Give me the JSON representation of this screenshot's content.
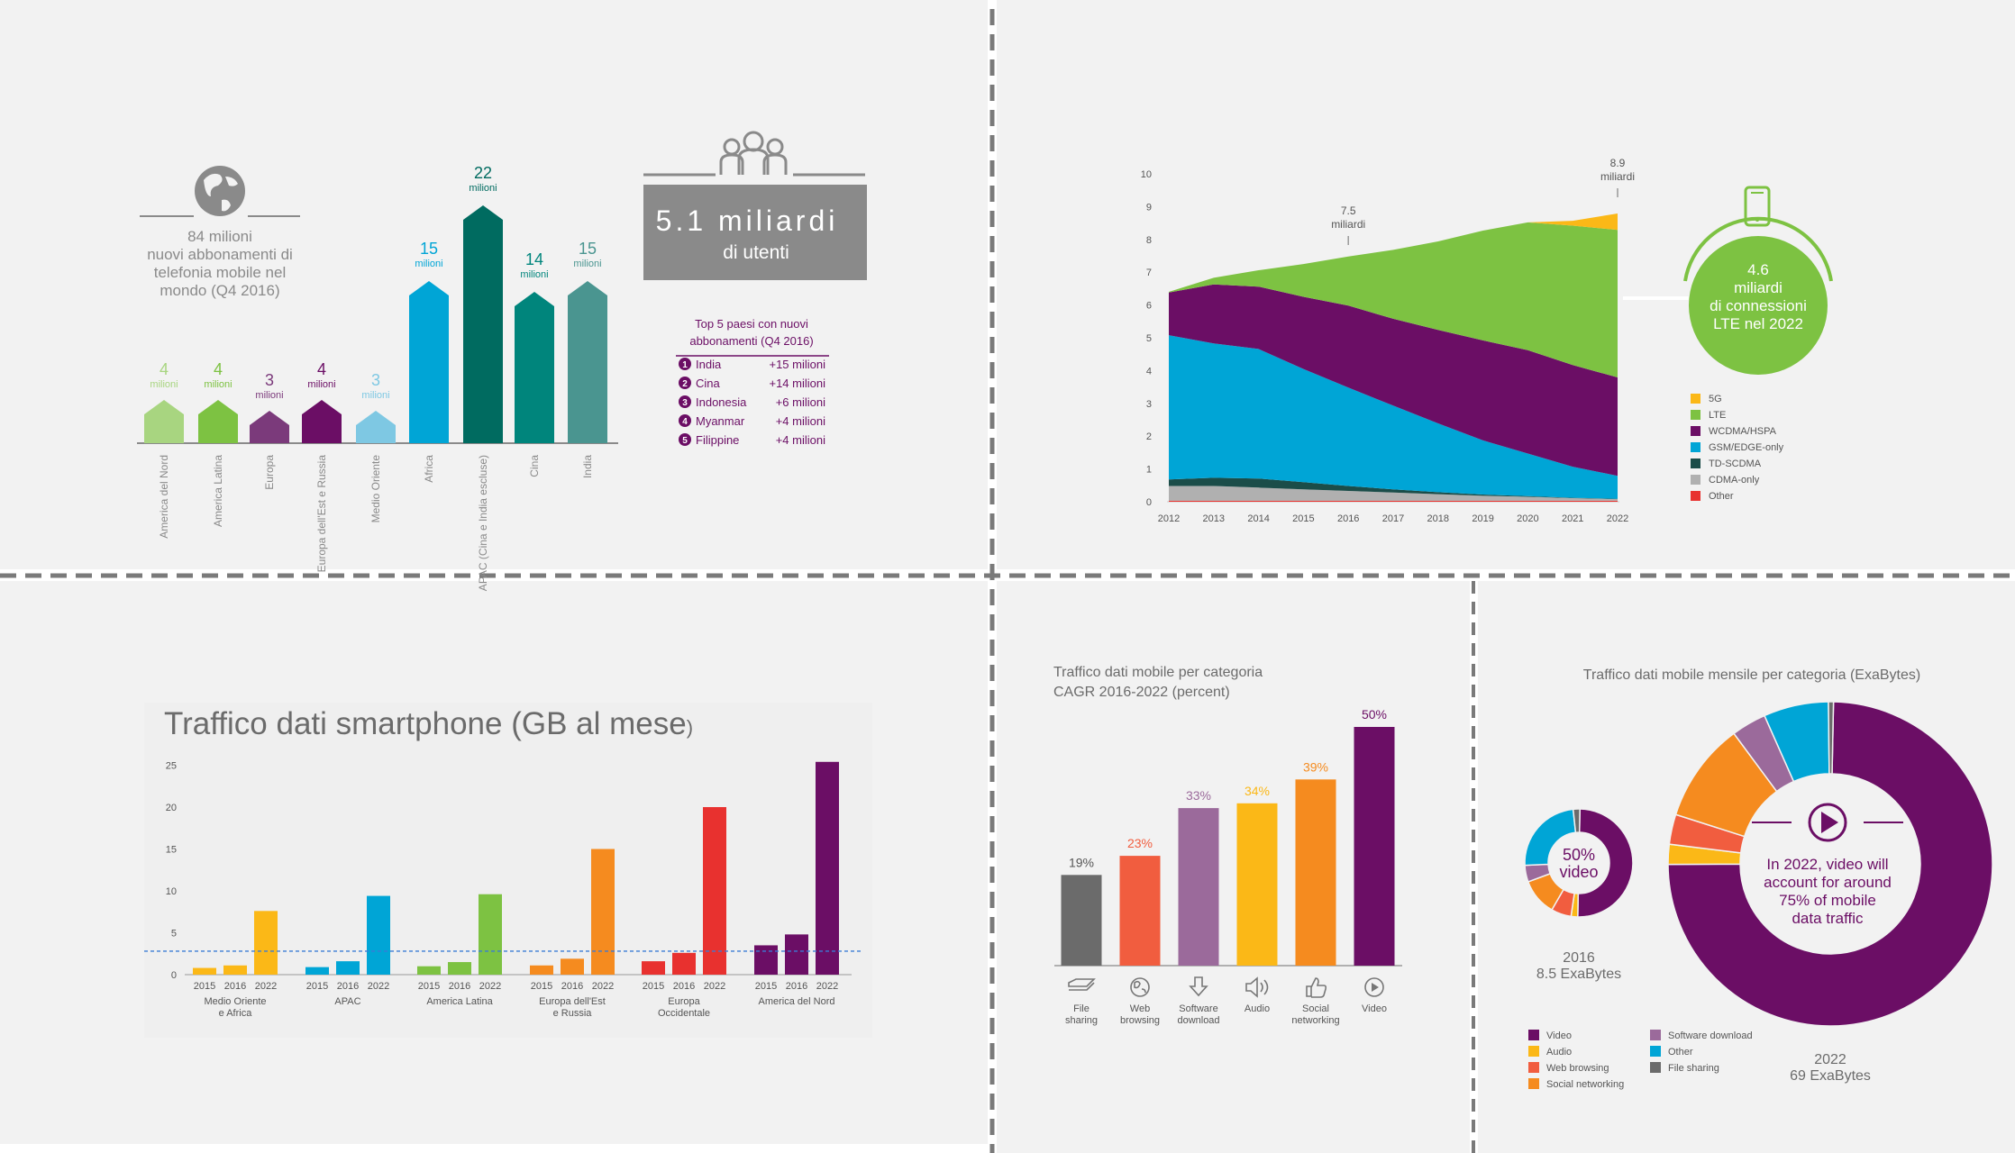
{
  "colors": {
    "bg": "#f2f2f2",
    "divider": "#7a7a7a",
    "gray_text": "#8a8a8a",
    "purple": "#6b0e65",
    "green": "#7dc242",
    "light_green": "#a8d580",
    "teal_dark": "#006b60",
    "teal": "#00857c",
    "teal_gray": "#4a9590",
    "blue": "#00a5d6",
    "light_blue": "#7ec8e3",
    "mid_purple": "#7b3a7b",
    "yellow": "#fbb817",
    "orange": "#f58b1f",
    "red": "#e8312f",
    "coral": "#f15d3f",
    "lavender": "#9b6a9b",
    "dark_gray": "#6b6b6b"
  },
  "panel1": {
    "globe_icon": "globe-icon",
    "summary_lines": [
      "84 milioni",
      "nuovi abbonamenti di",
      "telefonia mobile nel",
      "mondo (Q4 2016)"
    ],
    "users_icon": "users-icon",
    "users_box_big": "5.1 miliardi",
    "users_box_small": "di utenti",
    "top5_title_lines": [
      "Top 5 paesi con nuovi",
      "abbonamenti (Q4 2016)"
    ],
    "top5": [
      {
        "rank": "1",
        "country": "India",
        "value": "+15 milioni"
      },
      {
        "rank": "2",
        "country": "Cina",
        "value": "+14 milioni"
      },
      {
        "rank": "3",
        "country": "Indonesia",
        "value": "+6 milioni"
      },
      {
        "rank": "4",
        "country": "Myanmar",
        "value": "+4 milioni"
      },
      {
        "rank": "5",
        "country": "Filippine",
        "value": "+4 milioni"
      }
    ],
    "unit_label": "milioni"
  },
  "panel2": {
    "label_75": [
      "7.5",
      "miliardi"
    ],
    "label_89": [
      "8.9",
      "miliardi"
    ],
    "circle_lines": [
      "4.6",
      "miliardi",
      "di connessioni",
      "LTE nel 2022"
    ],
    "phone_icon": "phone-icon"
  },
  "panel4": {
    "title_lines": [
      "Traffico dati mobile per categoria",
      "CAGR 2016-2022 (percent)"
    ],
    "icons": [
      "file-sharing-icon",
      "web-browsing-icon",
      "software-download-icon",
      "audio-icon",
      "social-networking-icon",
      "video-icon"
    ]
  },
  "panel5": {
    "title": "Traffico dati mobile mensile per categoria (ExaBytes)",
    "small_center": [
      "50%",
      "video"
    ],
    "small_caption": [
      "2016",
      "8.5 ExaBytes"
    ],
    "big_center": [
      "In 2022, video will",
      "account for around",
      "75% of mobile",
      "data traffic"
    ],
    "big_caption": [
      "2022",
      "69 ExaBytes"
    ],
    "play_icon": "play-icon",
    "legend": [
      {
        "name": "Video",
        "color": "#6b0e65"
      },
      {
        "name": "Audio",
        "color": "#fbb817"
      },
      {
        "name": "Web browsing",
        "color": "#f15d3f"
      },
      {
        "name": "Social networking",
        "color": "#f58b1f"
      },
      {
        "name": "Software download",
        "color": "#9b6a9b"
      },
      {
        "name": "Other",
        "color": "#00a5d6"
      },
      {
        "name": "File sharing",
        "color": "#6b6b6b"
      }
    ]
  },
  "chart_data": [
    {
      "type": "bar",
      "id": "new-subscriptions",
      "categories": [
        "America del Nord",
        "America Latina",
        "Europa",
        "Europa dell'Est e Russia",
        "Medio Oriente",
        "Africa",
        "APAC (Cina e India escluse)",
        "Cina",
        "India"
      ],
      "values": [
        4,
        4,
        3,
        4,
        3,
        15,
        22,
        14,
        15
      ],
      "value_labels": [
        "4",
        "4",
        "3",
        "4",
        "3",
        "15",
        "22",
        "14",
        "15"
      ],
      "colors": [
        "#a8d580",
        "#7dc242",
        "#7b3a7b",
        "#6b0e65",
        "#7ec8e3",
        "#00a5d6",
        "#006b60",
        "#00857c",
        "#4a9590"
      ]
    },
    {
      "type": "area",
      "id": "subscriptions-by-technology",
      "x": [
        2012,
        2013,
        2014,
        2015,
        2016,
        2017,
        2018,
        2019,
        2020,
        2021,
        2022
      ],
      "x_ticks": [
        "2012",
        "2013",
        "2014",
        "2015",
        "2016",
        "2017",
        "2018",
        "2019",
        "2020",
        "2021",
        "2022"
      ],
      "ylim": [
        0,
        10
      ],
      "y_ticks": [
        "0",
        "1",
        "2",
        "3",
        "4",
        "5",
        "6",
        "7",
        "8",
        "9",
        "10"
      ],
      "series": [
        {
          "name": "Other",
          "color": "#e8312f",
          "values": [
            0.03,
            0.03,
            0.03,
            0.03,
            0.03,
            0.03,
            0.03,
            0.03,
            0.03,
            0.03,
            0.03
          ]
        },
        {
          "name": "CDMA-only",
          "color": "#b0b0b0",
          "values": [
            0.45,
            0.45,
            0.4,
            0.35,
            0.3,
            0.25,
            0.2,
            0.15,
            0.12,
            0.08,
            0.05
          ]
        },
        {
          "name": "TD-SCDMA",
          "color": "#1b4d49",
          "values": [
            0.2,
            0.25,
            0.28,
            0.22,
            0.15,
            0.1,
            0.06,
            0.04,
            0.02,
            0.01,
            0.01
          ]
        },
        {
          "name": "GSM/EDGE-only",
          "color": "#00a5d6",
          "values": [
            4.4,
            4.1,
            3.95,
            3.45,
            3.0,
            2.55,
            2.1,
            1.65,
            1.3,
            0.95,
            0.7
          ]
        },
        {
          "name": "WCDMA/HSPA",
          "color": "#6b0e65",
          "values": [
            1.3,
            1.8,
            1.9,
            2.2,
            2.5,
            2.65,
            2.85,
            3.05,
            3.15,
            3.1,
            3.0
          ]
        },
        {
          "name": "LTE",
          "color": "#7dc242",
          "values": [
            0.02,
            0.2,
            0.5,
            1.0,
            1.5,
            2.1,
            2.7,
            3.35,
            3.9,
            4.25,
            4.5
          ]
        },
        {
          "name": "5G",
          "color": "#fbb817",
          "values": [
            0,
            0,
            0,
            0,
            0,
            0,
            0,
            0,
            0,
            0.15,
            0.5
          ]
        }
      ]
    },
    {
      "type": "bar",
      "id": "smartphone-data-traffic",
      "title": "Traffico dati smartphone (GB al mese",
      "title_suffix": ")",
      "groups": [
        {
          "name": "Medio Oriente e Africa",
          "lines": [
            "Medio  Oriente",
            "e Africa"
          ],
          "color": "#fbb817"
        },
        {
          "name": "APAC",
          "lines": [
            "APAC"
          ],
          "color": "#00a5d6"
        },
        {
          "name": "America Latina",
          "lines": [
            "America Latina"
          ],
          "color": "#7dc242"
        },
        {
          "name": "Europa dell'Est e Russia",
          "lines": [
            "Europa dell'Est",
            "e Russia"
          ],
          "color": "#f58b1f"
        },
        {
          "name": "Europa Occidentale",
          "lines": [
            "Europa",
            "Occidentale"
          ],
          "color": "#e8312f"
        },
        {
          "name": "America del Nord",
          "lines": [
            "America del Nord"
          ],
          "color": "#6b0e65"
        }
      ],
      "years": [
        "2015",
        "2016",
        "2022"
      ],
      "values": [
        [
          0.8,
          1.1,
          7.6
        ],
        [
          0.9,
          1.6,
          9.4
        ],
        [
          1.0,
          1.5,
          9.6
        ],
        [
          1.1,
          1.9,
          15.0
        ],
        [
          1.6,
          2.6,
          20.0
        ],
        [
          3.5,
          4.8,
          25.4
        ]
      ],
      "reference_line": 2.8,
      "ylim": [
        0,
        25
      ],
      "y_ticks": [
        "0",
        "5",
        "10",
        "15",
        "20",
        "25"
      ]
    },
    {
      "type": "bar",
      "id": "cagr-by-category",
      "categories": [
        "File sharing",
        "Web browsing",
        "Software download",
        "Audio",
        "Social networking",
        "Video"
      ],
      "category_lines": [
        [
          "File",
          "sharing"
        ],
        [
          "Web",
          "browsing"
        ],
        [
          "Software",
          "download"
        ],
        [
          "Audio"
        ],
        [
          "Social",
          "networking"
        ],
        [
          "Video"
        ]
      ],
      "values": [
        19,
        23,
        33,
        34,
        39,
        50
      ],
      "value_labels": [
        "19%",
        "23%",
        "33%",
        "34%",
        "39%",
        "50%"
      ],
      "colors": [
        "#6b6b6b",
        "#f15d3f",
        "#9b6a9b",
        "#fbb817",
        "#f58b1f",
        "#6b0e65"
      ]
    },
    {
      "type": "pie",
      "id": "traffic-2016",
      "labels": [
        "Video",
        "Audio",
        "Web browsing",
        "Social networking",
        "Software download",
        "Other",
        "File sharing"
      ],
      "values": [
        50,
        2,
        6,
        11,
        5,
        24,
        2
      ],
      "colors": [
        "#6b0e65",
        "#fbb817",
        "#f15d3f",
        "#f58b1f",
        "#9b6a9b",
        "#00a5d6",
        "#6b6b6b"
      ]
    },
    {
      "type": "pie",
      "id": "traffic-2022",
      "labels": [
        "Video",
        "Audio",
        "Web browsing",
        "Social networking",
        "Software download",
        "Other",
        "File sharing"
      ],
      "values": [
        75,
        2,
        3,
        10,
        3.5,
        6.5,
        0.5
      ],
      "colors": [
        "#6b0e65",
        "#fbb817",
        "#f15d3f",
        "#f58b1f",
        "#9b6a9b",
        "#00a5d6",
        "#6b6b6b"
      ]
    }
  ]
}
